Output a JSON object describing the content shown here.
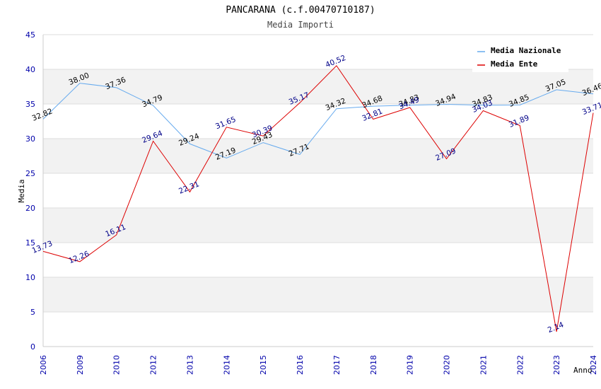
{
  "chart_data": {
    "type": "line",
    "title": "PANCARANA (c.f.00470710187)",
    "subtitle": "Media Importi",
    "xlabel": "Anno",
    "ylabel": "Media",
    "ylim": [
      0,
      45
    ],
    "yticks": [
      0,
      5,
      10,
      15,
      20,
      25,
      30,
      35,
      40,
      45
    ],
    "categories": [
      "2006",
      "2009",
      "2010",
      "2012",
      "2013",
      "2014",
      "2015",
      "2016",
      "2017",
      "2018",
      "2019",
      "2020",
      "2021",
      "2022",
      "2023",
      "2024"
    ],
    "series": [
      {
        "name": "Media Nazionale",
        "color": "#66aaee",
        "label_color": "#000000",
        "values": [
          32.82,
          38.0,
          37.36,
          34.79,
          29.24,
          27.19,
          29.43,
          27.71,
          34.32,
          34.68,
          34.83,
          34.94,
          34.83,
          34.85,
          37.05,
          36.46
        ],
        "labels": [
          "32.82",
          "38.00",
          "37.36",
          "34.79",
          "29.24",
          "27.19",
          "29.43",
          "27.71",
          "34.32",
          "34.68",
          "34.83",
          "34.94",
          "34.83",
          "34.85",
          "37.05",
          "36.46"
        ]
      },
      {
        "name": "Media Ente",
        "color": "#dd0000",
        "label_color": "#000088",
        "values": [
          13.73,
          12.26,
          16.11,
          29.64,
          22.31,
          31.65,
          30.39,
          35.17,
          40.52,
          32.81,
          34.49,
          27.09,
          34.03,
          31.89,
          2.14,
          33.71
        ],
        "labels": [
          "13.73",
          "12.26",
          "16.11",
          "29.64",
          "22.31",
          "31.65",
          "30.39",
          "35.17",
          "40.52",
          "32.81",
          "34.49",
          "27.09",
          "34.03",
          "31.89",
          "2.14",
          "33.71"
        ]
      }
    ],
    "legend_position": "top-right",
    "grid": true,
    "colors": {
      "band": "#f2f2f2",
      "grid": "#dddddd",
      "axis": "#cccccc",
      "tick_text": "#0000aa"
    }
  }
}
